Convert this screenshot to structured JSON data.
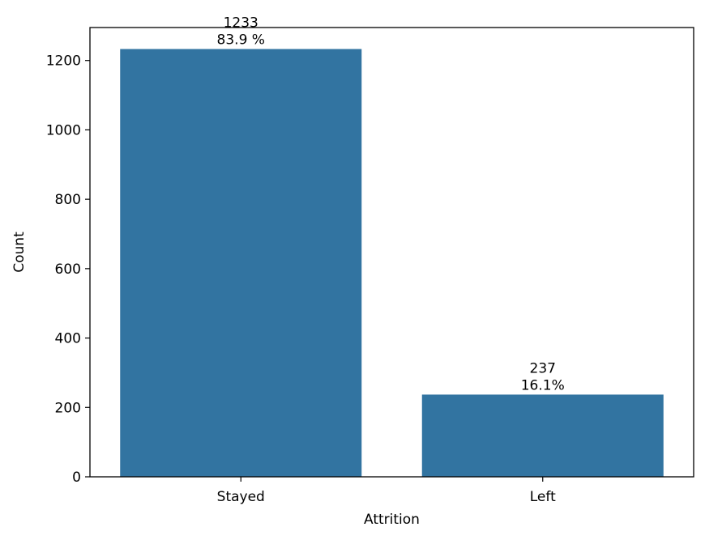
{
  "chart_data": {
    "type": "bar",
    "title": "",
    "xlabel": "Attrition",
    "ylabel": "Count",
    "categories": [
      "Stayed",
      "Left"
    ],
    "values": [
      1233,
      237
    ],
    "bar_labels": [
      {
        "count": "1233",
        "percent": "83.9 %"
      },
      {
        "count": "237",
        "percent": "16.1%"
      }
    ],
    "ylim": [
      0,
      1295
    ],
    "yticks": [
      0,
      200,
      400,
      600,
      800,
      1000,
      1200
    ],
    "ytick_labels": [
      "0",
      "200",
      "400",
      "600",
      "800",
      "1000",
      "1200"
    ],
    "grid": false,
    "legend": "none",
    "bar_color": "#3274a1",
    "axis_color": "#000000"
  }
}
